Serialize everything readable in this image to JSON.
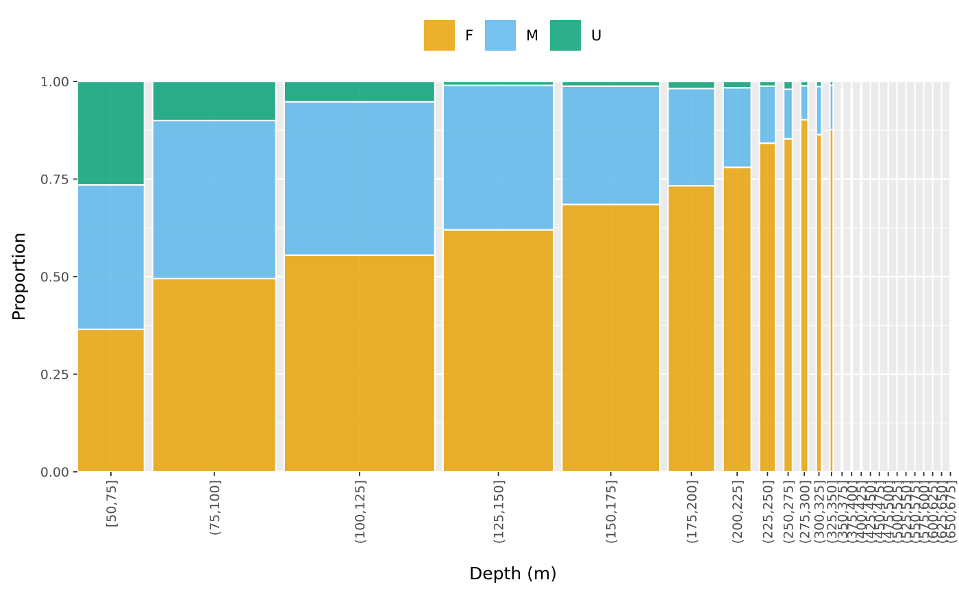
{
  "chart_data": {
    "type": "bar",
    "subtype": "mosaic / proportional stacked bar (variable width)",
    "xlabel": "Depth (m)",
    "ylabel": "Proportion",
    "ylim": [
      0,
      1
    ],
    "y_ticks": [
      "0.00",
      "0.25",
      "0.50",
      "0.75",
      "1.00"
    ],
    "legend_position": "top",
    "grid": true,
    "legend": [
      {
        "key": "F",
        "label": "F",
        "color": "#E69F00"
      },
      {
        "key": "M",
        "label": "M",
        "color": "#56B4E9"
      },
      {
        "key": "U",
        "label": "U",
        "color": "#009E73"
      }
    ],
    "categories": [
      "[50,75]",
      "(75,100]",
      "(100,125]",
      "(125,150]",
      "(150,175]",
      "(175,200]",
      "(200,225]",
      "(225,250]",
      "(250,275]",
      "(275,300]",
      "(300,325]",
      "(325,350]",
      "(350,375]",
      "(375,400]",
      "(400,425]",
      "(425,450]",
      "(450,475]",
      "(475,500]",
      "(500,525]",
      "(525,550]",
      "(550,575]",
      "(575,600]",
      "(600,625]",
      "(625,650]",
      "(650,675]"
    ],
    "relative_counts": [
      100,
      184,
      225,
      165,
      146,
      70,
      42,
      24,
      13,
      11,
      8,
      5,
      2,
      2,
      2,
      1,
      1,
      1,
      1,
      1,
      1,
      1,
      1,
      1,
      1
    ],
    "series": [
      {
        "name": "F",
        "values": [
          0.365,
          0.495,
          0.555,
          0.62,
          0.685,
          0.733,
          0.78,
          0.842,
          0.853,
          0.902,
          0.864,
          0.877,
          0.98,
          0.98,
          0.98,
          0,
          0,
          0,
          0,
          0,
          0,
          0,
          0,
          0,
          0.98
        ]
      },
      {
        "name": "M",
        "values": [
          0.37,
          0.405,
          0.393,
          0.37,
          0.303,
          0.249,
          0.204,
          0.146,
          0.127,
          0.087,
          0.123,
          0.113,
          0,
          0,
          0,
          0,
          0,
          0,
          0,
          0,
          0,
          0,
          0,
          0,
          0
        ]
      },
      {
        "name": "U",
        "values": [
          0.265,
          0.1,
          0.052,
          0.01,
          0.012,
          0.018,
          0.016,
          0.012,
          0.02,
          0.011,
          0.013,
          0.01,
          0,
          0,
          0,
          0,
          0,
          0,
          0,
          0,
          0,
          0,
          0,
          0,
          0
        ]
      }
    ]
  }
}
